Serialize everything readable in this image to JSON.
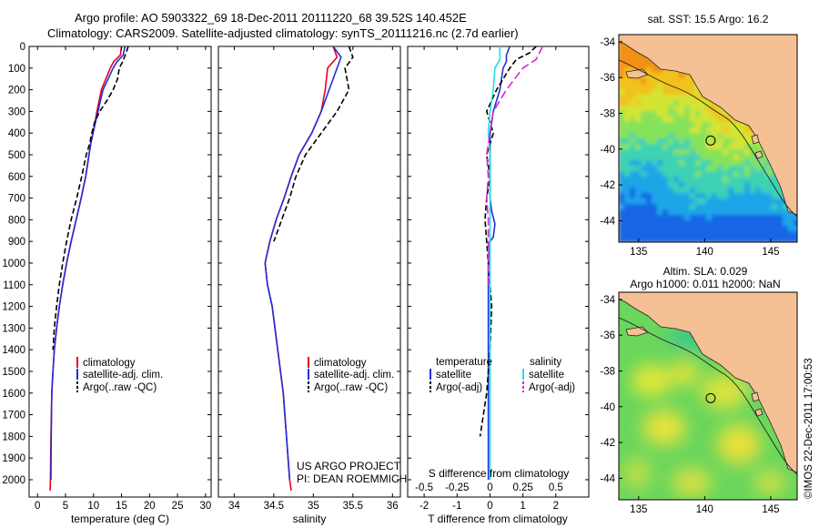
{
  "header": {
    "line1": "Argo profile: AO 5903322_69 18-Dec-2011 20111220_68 39.52S 140.452E",
    "line2": "Climatology: CARS2009. Satellite-adjusted climatology: synTS_20111216.nc (2.7d earlier)"
  },
  "credits": {
    "project": "US ARGO PROJECT",
    "pi": "PI: DEAN ROEMMICH",
    "imos": "©IMOS 22-Dec-2011 17:00:53"
  },
  "colors": {
    "climatology": "#e8001c",
    "satellite": "#1f2fd8",
    "argo": "#000000",
    "sat_s": "#22e0e0",
    "argo_s": "#e020d8"
  },
  "chart_data": [
    {
      "type": "line",
      "id": "temperature",
      "xlabel": "temperature (deg C)",
      "ylabel": "",
      "xlim": [
        -1.5,
        31
      ],
      "ylim": [
        2080,
        0
      ],
      "xticks": [
        0,
        5,
        10,
        15,
        20,
        25,
        30
      ],
      "yticks": [
        0,
        100,
        200,
        300,
        400,
        500,
        600,
        700,
        800,
        900,
        1000,
        1100,
        1200,
        1300,
        1400,
        1500,
        1600,
        1700,
        1800,
        1900,
        2000
      ],
      "legend": [
        "climatology",
        "satellite-adj. clim.",
        "Argo(..raw -QC)"
      ],
      "series": [
        {
          "name": "climatology",
          "color": "#e8001c",
          "dash": "",
          "x": [
            15.0,
            14.8,
            13.6,
            13.0,
            12.2,
            11.4,
            10.6,
            9.9,
            9.5,
            9.2,
            8.6,
            7.8,
            6.9,
            6.0,
            5.2,
            4.5,
            3.9,
            3.4,
            3.0,
            2.75,
            2.55,
            2.4,
            2.3,
            2.25
          ],
          "y": [
            0,
            40,
            70,
            100,
            150,
            200,
            300,
            400,
            450,
            500,
            600,
            700,
            800,
            900,
            1000,
            1100,
            1200,
            1300,
            1400,
            1500,
            1600,
            1800,
            2000,
            2050
          ]
        },
        {
          "name": "satellite-adj. clim.",
          "color": "#1f2fd8",
          "dash": "",
          "x": [
            15.6,
            15.3,
            14.2,
            13.5,
            12.6,
            11.7,
            10.8,
            9.9,
            9.5,
            9.2,
            8.6,
            7.8,
            6.9,
            6.0,
            5.2,
            4.5,
            3.9,
            3.4,
            3.0,
            2.75,
            2.55,
            2.45,
            2.4
          ],
          "y": [
            0,
            40,
            70,
            100,
            150,
            200,
            300,
            400,
            450,
            500,
            600,
            700,
            800,
            900,
            1000,
            1100,
            1200,
            1300,
            1400,
            1500,
            1600,
            1800,
            2000
          ]
        },
        {
          "name": "Argo(..raw -QC)",
          "color": "#000000",
          "dash": "6,3",
          "x": [
            16.2,
            15.8,
            15.2,
            14.6,
            14.3,
            13.5,
            12.4,
            11.1,
            10.2,
            9.7,
            9.3,
            8.7,
            7.9,
            7.0,
            6.0,
            5.2,
            4.5,
            3.9,
            3.4,
            3.0,
            2.75
          ],
          "y": [
            0,
            30,
            70,
            100,
            150,
            200,
            250,
            300,
            350,
            400,
            450,
            500,
            600,
            700,
            800,
            900,
            1000,
            1100,
            1200,
            1300,
            1400
          ]
        }
      ]
    },
    {
      "type": "line",
      "id": "salinity",
      "xlabel": "salinity",
      "ylabel": "",
      "xlim": [
        33.8,
        36.1
      ],
      "ylim": [
        2080,
        0
      ],
      "xticks": [
        34,
        34.5,
        35,
        35.5,
        36
      ],
      "xticklabels": [
        "34",
        "34.5",
        "35",
        "35.5",
        "36"
      ],
      "legend": [
        "climatology",
        "satellite-adj. clim.",
        "Argo(..raw -QC)"
      ],
      "series": [
        {
          "name": "climatology",
          "color": "#e8001c",
          "dash": "",
          "x": [
            35.25,
            35.3,
            35.18,
            35.15,
            35.1,
            34.98,
            34.82,
            34.72,
            34.63,
            34.53,
            34.45,
            34.39,
            34.42,
            34.48,
            34.55,
            34.62,
            34.66,
            34.7,
            34.72
          ],
          "y": [
            0,
            50,
            100,
            200,
            300,
            400,
            500,
            600,
            700,
            800,
            900,
            1000,
            1100,
            1200,
            1400,
            1600,
            1800,
            2000,
            2050
          ]
        },
        {
          "name": "satellite-adj. clim.",
          "color": "#1f2fd8",
          "dash": "",
          "x": [
            35.25,
            35.35,
            35.3,
            35.2,
            35.1,
            34.98,
            34.82,
            34.72,
            34.63,
            34.53,
            34.45,
            34.39,
            34.42,
            34.48,
            34.55,
            34.62,
            34.66,
            34.7
          ],
          "y": [
            0,
            50,
            100,
            200,
            300,
            400,
            500,
            600,
            700,
            800,
            900,
            1000,
            1100,
            1200,
            1400,
            1600,
            1800,
            2000
          ]
        },
        {
          "name": "Argo(..raw -QC)",
          "color": "#000000",
          "dash": "6,3",
          "x": [
            35.45,
            35.5,
            35.4,
            35.45,
            35.3,
            35.1,
            34.9,
            34.78,
            34.7,
            34.6,
            34.5
          ],
          "y": [
            0,
            50,
            100,
            200,
            300,
            400,
            500,
            600,
            700,
            800,
            900
          ]
        }
      ]
    },
    {
      "type": "line",
      "id": "differences",
      "xlabel": "T difference from climatology",
      "top_label": "S difference from climatology",
      "xlim": [
        -2.5,
        3
      ],
      "ylim": [
        2080,
        0
      ],
      "xticks": [
        -2,
        -1,
        0,
        1,
        2
      ],
      "top_ticks": [
        "-0.5",
        "-0.25",
        "0",
        "0.25",
        "0.5"
      ],
      "legend_groups": [
        {
          "title": "temperature",
          "items": [
            "satellite",
            "Argo(-adj)"
          ]
        },
        {
          "title": "salinity",
          "items": [
            "satellite",
            "Argo(-adj)"
          ]
        }
      ],
      "series": [
        {
          "name": "temperature satellite",
          "color": "#1f2fd8",
          "dash": "",
          "x": [
            0.6,
            0.5,
            0.5,
            0.4,
            0.3,
            0.1,
            0.0,
            0.0,
            0.0,
            0.05,
            0.15,
            0.1,
            0.0,
            -0.05,
            -0.05,
            -0.05,
            -0.05,
            -0.05,
            -0.05
          ],
          "y": [
            0,
            40,
            70,
            100,
            200,
            300,
            400,
            500,
            700,
            760,
            820,
            880,
            900,
            1000,
            1200,
            1400,
            1600,
            1800,
            2000
          ]
        },
        {
          "name": "temperature Argo(-adj)",
          "color": "#000000",
          "dash": "6,3",
          "x": [
            1.4,
            1.2,
            0.8,
            0.6,
            0.2,
            -0.1,
            0.1,
            -0.1,
            0.0,
            -0.1,
            -0.15,
            -0.1,
            -0.05,
            0.0,
            0.05,
            0.0,
            -0.1,
            -0.3
          ],
          "y": [
            0,
            30,
            60,
            100,
            200,
            300,
            400,
            500,
            600,
            700,
            800,
            900,
            1000,
            1100,
            1200,
            1400,
            1600,
            1800
          ]
        },
        {
          "name": "salinity satellite",
          "color": "#22e0e0",
          "dash": "",
          "x": [
            0.3,
            0.3,
            0.15,
            0.1,
            0.0,
            -0.05,
            0.0,
            0.0,
            0.0,
            0.0,
            0.0,
            0.0
          ],
          "y": [
            0,
            60,
            100,
            200,
            300,
            400,
            500,
            700,
            1000,
            1400,
            1800,
            2000
          ]
        },
        {
          "name": "salinity Argo(-adj)",
          "color": "#e020d8",
          "dash": "9,4",
          "x": [
            1.6,
            1.4,
            1.0,
            0.5,
            0.1,
            0.0,
            -0.1,
            -0.05,
            -0.1,
            -0.05,
            -0.05,
            -0.05,
            -0.05
          ],
          "y": [
            0,
            60,
            100,
            200,
            300,
            400,
            500,
            600,
            700,
            800,
            900,
            1000,
            1100
          ]
        }
      ]
    },
    {
      "type": "heatmap",
      "id": "sst_map",
      "title": "sat. SST: 15.5  Argo: 16.2",
      "xlim": [
        133.5,
        147
      ],
      "ylim": [
        -45.2,
        -33.6
      ],
      "xticks": [
        135,
        140,
        145
      ],
      "yticks": [
        -34,
        -36,
        -38,
        -40,
        -42,
        -44
      ],
      "marker": [
        140.45,
        -39.52
      ]
    },
    {
      "type": "heatmap",
      "id": "sla_map",
      "title_line1": "Altim. SLA: 0.029",
      "title_line2": "Argo h1000: 0.011  h2000: NaN",
      "xlim": [
        133.5,
        147
      ],
      "ylim": [
        -45.2,
        -33.6
      ],
      "xticks": [
        135,
        140,
        145
      ],
      "yticks": [
        -34,
        -36,
        -38,
        -40,
        -42,
        -44
      ],
      "marker": [
        140.45,
        -39.52
      ]
    }
  ]
}
